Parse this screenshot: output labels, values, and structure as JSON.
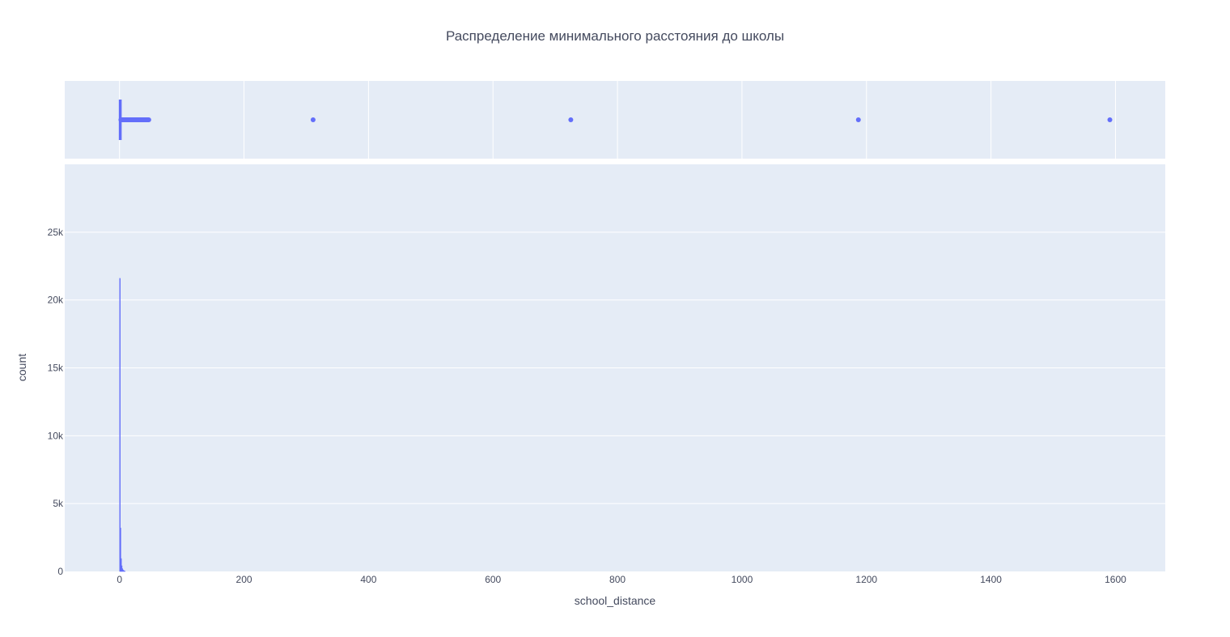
{
  "chart_data": {
    "type": "histogram",
    "title": "Распределение минимального расстояния до школы",
    "xlabel": "school_distance",
    "ylabel": "count",
    "xlim": [
      -88,
      1680
    ],
    "ylim": [
      0,
      30000
    ],
    "x_ticks": [
      0,
      200,
      400,
      600,
      800,
      1000,
      1200,
      1400,
      1600
    ],
    "x_tick_labels": [
      "0",
      "200",
      "400",
      "600",
      "800",
      "1000",
      "1200",
      "1400",
      "1600"
    ],
    "y_ticks": [
      0,
      5000,
      10000,
      15000,
      20000,
      25000
    ],
    "y_tick_labels": [
      "0",
      "5k",
      "10k",
      "15k",
      "20k",
      "25k"
    ],
    "grid": true,
    "color": "#636efa",
    "bins": [
      {
        "x0": 0,
        "x1": 1,
        "count": 21600
      },
      {
        "x0": 1,
        "x1": 2,
        "count": 3200
      },
      {
        "x0": 2,
        "x1": 3,
        "count": 950
      },
      {
        "x0": 3,
        "x1": 4,
        "count": 420
      },
      {
        "x0": 4,
        "x1": 5,
        "count": 210
      },
      {
        "x0": 5,
        "x1": 6,
        "count": 120
      },
      {
        "x0": 6,
        "x1": 7,
        "count": 70
      },
      {
        "x0": 7,
        "x1": 8,
        "count": 40
      },
      {
        "x0": 8,
        "x1": 9,
        "count": 25
      }
    ],
    "marginal_box": {
      "q1": 0.2,
      "median": 0.5,
      "q3": 1.0,
      "whisker_low": 0,
      "whisker_high": 2.2,
      "outlier_range": [
        2.2,
        47
      ],
      "outliers": [
        311,
        725,
        1187,
        1591
      ]
    }
  }
}
